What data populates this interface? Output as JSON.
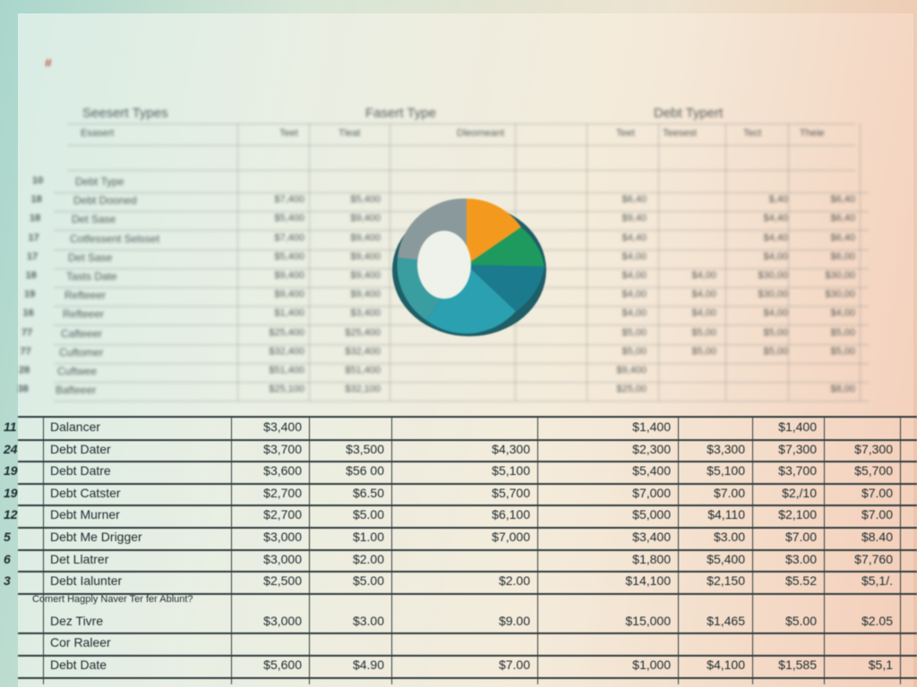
{
  "marker": "#",
  "top_table": {
    "headers": [
      "Seesert Types",
      "Fasert Type",
      "Debt Typert"
    ],
    "sub_headers": [
      "Esasert",
      "Teet",
      "Tleat",
      "Dleomeant",
      "Teet",
      "Teesest",
      "Tect",
      "Theie"
    ],
    "rows": [
      {
        "num": "10",
        "label": "Debt Type",
        "values": [
          null,
          null,
          null,
          null,
          null,
          null
        ]
      },
      {
        "num": "18",
        "label": "Debt Dooned",
        "values": [
          "$7,400",
          "$5,400",
          "$6,40",
          null,
          "$,40",
          "$6,40"
        ]
      },
      {
        "num": "18",
        "label": "Det Sase",
        "values": [
          "$5,400",
          "$9,400",
          "$9,40",
          null,
          "$4,40",
          "$6,40"
        ]
      },
      {
        "num": "17",
        "label": "Cotfessent Selsset",
        "values": [
          "$7,400",
          "$9,400",
          "$4,40",
          null,
          "$4,40",
          "$6,40"
        ]
      },
      {
        "num": "17",
        "label": "Det Sase",
        "values": [
          "$5,400",
          "$9,400",
          "$4,00",
          null,
          "$4,00",
          "$6,00"
        ]
      },
      {
        "num": "18",
        "label": "Tasts Date",
        "values": [
          "$9,400",
          "$9,400",
          "$4,00",
          "$4,00",
          "$30,00",
          "$30,00"
        ]
      },
      {
        "num": "19",
        "label": "Refteeer",
        "values": [
          "$9,400",
          "$9,400",
          "$4,00",
          "$4,00",
          "$30,00",
          "$30,00"
        ]
      },
      {
        "num": "16",
        "label": "Refteeer",
        "values": [
          "$1,400",
          "$3,400",
          "$4,00",
          "$4,00",
          "$4,00",
          "$4,00"
        ]
      },
      {
        "num": "77",
        "label": "Cafteeer",
        "values": [
          "$25,400",
          "$25,400",
          "$5,00",
          "$5,00",
          "$5,00",
          "$5,00"
        ]
      },
      {
        "num": "77",
        "label": "Cuftomer",
        "values": [
          "$32,400",
          "$32,400",
          "$5,00",
          "$5,00",
          "$5,00",
          "$5,00"
        ]
      },
      {
        "num": "28",
        "label": "Cuftwee",
        "values": [
          "$51,400",
          "$51,400",
          "$9,400",
          null,
          null,
          null
        ]
      },
      {
        "num": "38",
        "label": "Bafteeer",
        "values": [
          "$25,100",
          "$32,100",
          "$25,00",
          null,
          null,
          "$8,00"
        ]
      }
    ]
  },
  "bottom_table": {
    "rows": [
      {
        "num": "11",
        "label": "Dalancer",
        "values": [
          "$3,400",
          null,
          null,
          "$1,400",
          null,
          "$1,400",
          null
        ]
      },
      {
        "num": "24",
        "label": "Debt Dater",
        "values": [
          "$3,700",
          "$3,500",
          "$4,300",
          "$2,300",
          "$3,300",
          "$7,300",
          "$7,300"
        ]
      },
      {
        "num": "19",
        "label": "Debt Datre",
        "values": [
          "$3,600",
          "$56 00",
          "$5,100",
          "$5,400",
          "$5,100",
          "$3,700",
          "$5,700"
        ]
      },
      {
        "num": "19",
        "label": "Debt Catster",
        "values": [
          "$2,700",
          "$6.50",
          "$5,700",
          "$7,000",
          "$7.00",
          "$2,/10",
          "$7.00"
        ]
      },
      {
        "num": "12",
        "label": "Debt Murner",
        "values": [
          "$2,700",
          "$5.00",
          "$6,100",
          "$5,000",
          "$4,110",
          "$2,100",
          "$7.00"
        ]
      },
      {
        "num": "5",
        "label": "Debt Me Drigger",
        "values": [
          "$3,000",
          "$1.00",
          "$7,000",
          "$3,400",
          "$3.00",
          "$7.00",
          "$8.40"
        ]
      },
      {
        "num": "6",
        "label": "Det Llatrer",
        "values": [
          "$3,000",
          "$2.00",
          null,
          "$1,800",
          "$5,400",
          "$3.00",
          "$7,760"
        ]
      },
      {
        "num": "3",
        "label": "Debt Ialunter",
        "values": [
          "$2,500",
          "$5.00",
          "$2.00",
          "$14,100",
          "$2,150",
          "$5.52",
          "$5,1/."
        ]
      }
    ],
    "note": "Comert Hagply Naver Ter fer Ablunt?",
    "footer_rows": [
      {
        "label": "Dez Tivre",
        "values": [
          "$3,000",
          "$3.00",
          "$9.00",
          "$15,000",
          "$1,465",
          "$5.00",
          "$2.05"
        ]
      },
      {
        "label": "Cor Raleer",
        "values": [
          null,
          null,
          null,
          null,
          null,
          null,
          null
        ]
      },
      {
        "label": "Debt Date",
        "values": [
          "$5,600",
          "$4.90",
          "$7.00",
          "$1,000",
          "$4,100",
          "$1,585",
          "$5,1"
        ]
      }
    ]
  }
}
